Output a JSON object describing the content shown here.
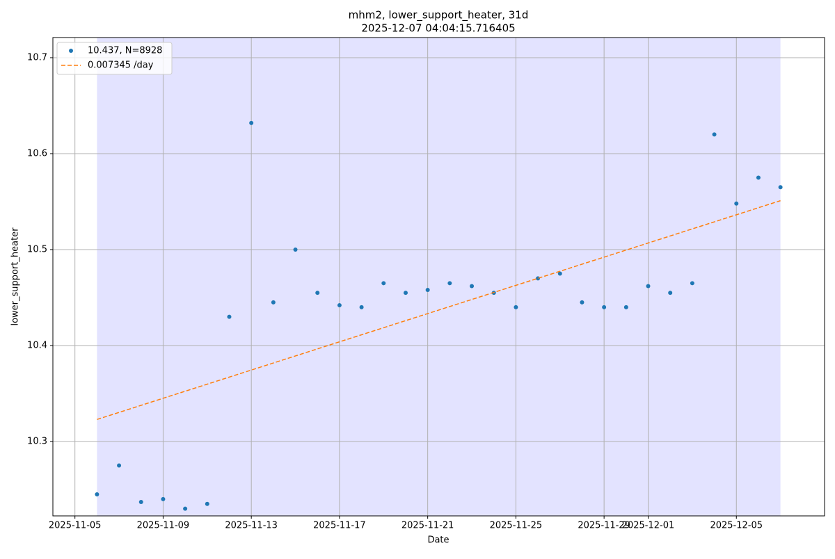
{
  "chart_data": {
    "type": "scatter",
    "title": "mhm2, lower_support_heater, 31d",
    "subtitle": "2025-12-07 04:04:15.716405",
    "x_label": "Date",
    "y_label": "lower_support_heater",
    "xlim": [
      "2025-11-04",
      "2025-12-09"
    ],
    "xticks": [
      "2025-11-05",
      "2025-11-09",
      "2025-11-13",
      "2025-11-17",
      "2025-11-21",
      "2025-11-25",
      "2025-11-29",
      "2025-12-01",
      "2025-12-05"
    ],
    "ylim": [
      10.2225,
      10.721
    ],
    "yticks": [
      10.3,
      10.4,
      10.5,
      10.6,
      10.7
    ],
    "grid": true,
    "legend": "upper left",
    "span": [
      "2025-11-06",
      "2025-12-07"
    ],
    "span_color": "#e3e3ff",
    "series": [
      {
        "name": "10.437, N=8928",
        "color": "#1f77b4",
        "kind": "scatter",
        "x": [
          "2025-11-06",
          "2025-11-07",
          "2025-11-08",
          "2025-11-09",
          "2025-11-10",
          "2025-11-11",
          "2025-11-12",
          "2025-11-13",
          "2025-11-14",
          "2025-11-15",
          "2025-11-16",
          "2025-11-17",
          "2025-11-18",
          "2025-11-19",
          "2025-11-20",
          "2025-11-21",
          "2025-11-22",
          "2025-11-23",
          "2025-11-24",
          "2025-11-25",
          "2025-11-26",
          "2025-11-27",
          "2025-11-28",
          "2025-11-29",
          "2025-11-30",
          "2025-12-01",
          "2025-12-02",
          "2025-12-03",
          "2025-12-04",
          "2025-12-05",
          "2025-12-06",
          "2025-12-07"
        ],
        "values": [
          10.245,
          10.275,
          10.237,
          10.24,
          10.23,
          10.235,
          10.43,
          10.632,
          10.445,
          10.5,
          10.455,
          10.442,
          10.44,
          10.465,
          10.455,
          10.458,
          10.465,
          10.462,
          10.455,
          10.44,
          10.47,
          10.475,
          10.445,
          10.44,
          10.44,
          10.462,
          10.455,
          10.465,
          10.62,
          10.548,
          10.575,
          10.565
        ]
      },
      {
        "name": "0.007345 /day",
        "color": "#ff7f0e",
        "kind": "dashed",
        "x": [
          "2025-11-06",
          "2025-12-07"
        ],
        "values": [
          10.323,
          10.551
        ]
      }
    ]
  }
}
